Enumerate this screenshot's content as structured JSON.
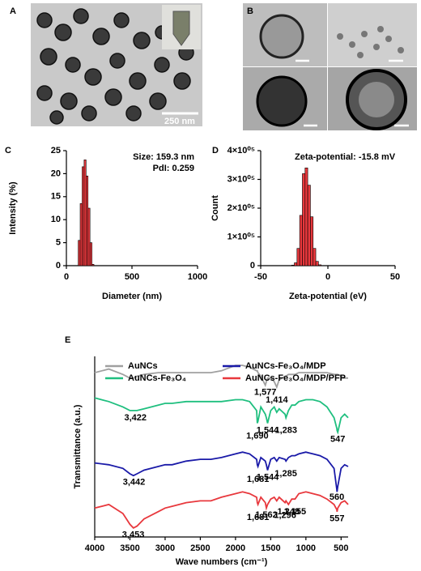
{
  "images": [
    {
      "label": "A",
      "scale_bar": "250 nm"
    },
    {
      "label": "B"
    }
  ],
  "chart_data": [
    {
      "panel": "C",
      "type": "histogram",
      "xlabel": "Diameter (nm)",
      "ylabel": "Intensity (%)",
      "annotations": [
        "Size: 159.3 nm",
        "PdI: 0.259"
      ],
      "bins": [
        90,
        105,
        120,
        135,
        150,
        165,
        180,
        195,
        210
      ],
      "values": [
        5.5,
        13.5,
        21.5,
        23,
        19.5,
        12.5,
        5,
        0.3
      ],
      "color": "#e8383d",
      "xlim": [
        0,
        1000
      ],
      "xticks": [
        0,
        500,
        1000
      ],
      "ylim": [
        0,
        25
      ],
      "yticks": [
        0,
        5,
        10,
        15,
        20,
        25
      ]
    },
    {
      "panel": "D",
      "type": "histogram",
      "xlabel": "Zeta-potential (eV)",
      "ylabel": "Count",
      "annotations": [
        "Zeta-potential: -15.8 mV"
      ],
      "bins": [
        -27,
        -25,
        -23,
        -21,
        -19,
        -17,
        -15,
        -13,
        -11,
        -9,
        -7,
        -5
      ],
      "values": [
        2000,
        10000,
        60000,
        175000,
        320000,
        340000,
        280000,
        170000,
        60000,
        15000,
        3000
      ],
      "color": "#e8383d",
      "xlim": [
        -50,
        50
      ],
      "xticks": [
        -50,
        0,
        50
      ],
      "ylim": [
        0,
        400000
      ],
      "yticks": [
        0,
        {
          "value": 100000,
          "label": "1×10⁰⁵"
        },
        {
          "value": 200000,
          "label": "2×10⁰⁵"
        },
        {
          "value": 300000,
          "label": "3×10⁰⁵"
        },
        {
          "value": 400000,
          "label": "4×10⁰⁵"
        }
      ]
    },
    {
      "panel": "E",
      "type": "line",
      "xlabel": "Wave numbers (cm⁻¹)",
      "ylabel": "Transmittance (a.u.)",
      "xlim": [
        4000,
        400
      ],
      "xticks": [
        4000,
        3500,
        3000,
        2500,
        2000,
        1500,
        1000,
        500
      ],
      "ylim": [
        0,
        100
      ],
      "x": [
        4000,
        3800,
        3600,
        3500,
        3450,
        3400,
        3300,
        3100,
        3000,
        2900,
        2700,
        2500,
        2350,
        2200,
        2000,
        1900,
        1800,
        1700,
        1690,
        1681,
        1640,
        1577,
        1562,
        1544,
        1500,
        1450,
        1414,
        1380,
        1296,
        1283,
        1248,
        1200,
        1155,
        1100,
        1000,
        900,
        800,
        700,
        600,
        560,
        557,
        547,
        500,
        450,
        400
      ],
      "series": [
        {
          "name": "AuNCs",
          "color": "#a0a0a0",
          "values": [
            91,
            93,
            90,
            88,
            88,
            89,
            90,
            91,
            91,
            91,
            91,
            91,
            91,
            92,
            95,
            95,
            94,
            92,
            92,
            91,
            89,
            84,
            86,
            88,
            88,
            86,
            83,
            87,
            89,
            89,
            90,
            90,
            90,
            91,
            91,
            91,
            91,
            91,
            90,
            90,
            90,
            90,
            89,
            88,
            88
          ],
          "annotations": [
            {
              "text": "1,577",
              "x": 1577
            },
            {
              "text": "1,414",
              "x": 1414
            }
          ]
        },
        {
          "name": "AuNCs-Fe₃O₄",
          "color": "#1fbf7f",
          "values": [
            77,
            75,
            72,
            70,
            70,
            70,
            71,
            73,
            74,
            74,
            75,
            75,
            75,
            75,
            76,
            76,
            75,
            70,
            63,
            64,
            72,
            68,
            66,
            63,
            70,
            72,
            69,
            71,
            68,
            66,
            70,
            73,
            73,
            75,
            76,
            76,
            75,
            72,
            66,
            60,
            59,
            58,
            66,
            68,
            66
          ],
          "annotations": [
            {
              "text": "3,422",
              "x": 3422
            },
            {
              "text": "1,690",
              "x": 1690
            },
            {
              "text": "1,544",
              "x": 1544
            },
            {
              "text": "1,283",
              "x": 1283
            },
            {
              "text": "547",
              "x": 547
            }
          ]
        },
        {
          "name": "AuNCs-Fe₃O₄/MDP",
          "color": "#1a1aa8",
          "values": [
            41,
            40,
            38,
            35,
            34,
            35,
            37,
            39,
            40,
            40,
            42,
            43,
            43,
            44,
            46,
            47,
            46,
            43,
            40,
            39,
            44,
            42,
            40,
            37,
            43,
            44,
            42,
            44,
            43,
            42,
            44,
            45,
            45,
            46,
            47,
            46,
            45,
            43,
            38,
            26,
            25,
            28,
            38,
            40,
            39
          ],
          "annotations": [
            {
              "text": "3,442",
              "x": 3442
            },
            {
              "text": "1,681",
              "x": 1681
            },
            {
              "text": "1,544",
              "x": 1544
            },
            {
              "text": "1,285",
              "x": 1285
            },
            {
              "text": "560",
              "x": 560
            }
          ]
        },
        {
          "name": "AuNCs-Fe₃O₄/MDP/PFP",
          "color": "#e8383d",
          "values": [
            16,
            18,
            13,
            7,
            5,
            6,
            10,
            14,
            16,
            17,
            19,
            20,
            20,
            22,
            24,
            25,
            24,
            22,
            19,
            18,
            22,
            19,
            16,
            18,
            21,
            22,
            20,
            22,
            19,
            20,
            18,
            21,
            21,
            24,
            25,
            24,
            23,
            21,
            18,
            15,
            14,
            16,
            19,
            20,
            18
          ],
          "annotations": [
            {
              "text": "3,453",
              "x": 3453
            },
            {
              "text": "1,681",
              "x": 1681
            },
            {
              "text": "1,562",
              "x": 1562
            },
            {
              "text": "1,296",
              "x": 1296
            },
            {
              "text": "1,248",
              "x": 1248
            },
            {
              "text": "1,155",
              "x": 1155
            },
            {
              "text": "557",
              "x": 557
            }
          ]
        }
      ]
    }
  ]
}
